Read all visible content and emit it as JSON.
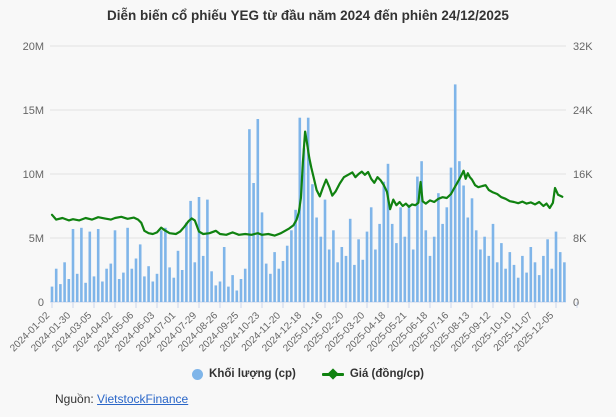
{
  "chart_data": {
    "type": "combo-bar-line",
    "title": "Diễn biến cổ phiếu YEG từ đầu năm 2024 đến phiên 24/12/2025",
    "x_tick_labels": [
      "2024-01-02",
      "2024-01-30",
      "2024-03-05",
      "2024-04-02",
      "2024-05-06",
      "2024-06-03",
      "2024-07-01",
      "2024-07-29",
      "2024-08-26",
      "2024-09-25",
      "2024-10-23",
      "2024-11-20",
      "2024-12-18",
      "2025-01-16",
      "2025-02-20",
      "2025-03-20",
      "2025-04-18",
      "2025-05-21",
      "2025-06-18",
      "2025-07-16",
      "2025-08-13",
      "2025-09-12",
      "2025-10-10",
      "2025-11-07",
      "2025-12-05"
    ],
    "y_left_axis": {
      "ticks": [
        "0",
        "5M",
        "10M",
        "15M",
        "20M"
      ],
      "min": 0,
      "max_millions": 20,
      "applies_to": "Khối lượng (cp)"
    },
    "y_right_axis": {
      "ticks": [
        "0",
        "8K",
        "16K",
        "24K",
        "32K"
      ],
      "min": 0,
      "max_thousands": 32,
      "applies_to": "Giá (đồng/cp)"
    },
    "grid": "horizontal-only",
    "legend_position": "bottom-center",
    "series": [
      {
        "name": "Khối lượng (cp)",
        "type": "bar",
        "color": "#7fb5e9",
        "unit": "cổ phiếu, triệu (M)",
        "t_step": 0.2,
        "values_millions": [
          1.2,
          2.6,
          1.4,
          3.1,
          1.8,
          5.7,
          2.2,
          5.8,
          1.5,
          5.5,
          2.0,
          5.7,
          1.6,
          2.6,
          3.0,
          5.6,
          1.8,
          2.3,
          5.8,
          2.6,
          3.4,
          4.5,
          2.0,
          2.8,
          1.6,
          2.2,
          5.6,
          5.8,
          2.7,
          1.9,
          4.0,
          2.5,
          6.2,
          7.9,
          3.1,
          8.2,
          3.6,
          8.0,
          2.4,
          1.3,
          1.6,
          4.3,
          1.2,
          2.1,
          0.9,
          1.8,
          2.6,
          13.5,
          9.3,
          14.3,
          7.0,
          3.0,
          2.2,
          3.9,
          2.6,
          3.2,
          4.4,
          5.6,
          7.2,
          14.4,
          12.0,
          14.4,
          9.2,
          6.6,
          5.1,
          8.0,
          4.1,
          5.6,
          3.1,
          4.3,
          3.6,
          6.5,
          2.9,
          4.9,
          3.3,
          5.5,
          7.4,
          4.1,
          6.1,
          9.4,
          10.8,
          6.1,
          4.6,
          7.4,
          5.1,
          7.6,
          4.1,
          9.8,
          11.0,
          5.6,
          3.6,
          5.1,
          8.5,
          6.1,
          7.4,
          10.5,
          17.0,
          11.0,
          9.1,
          6.6,
          8.1,
          5.6,
          4.1,
          5.1,
          3.6,
          6.1,
          3.1,
          4.6,
          2.6,
          3.9,
          2.9,
          1.9,
          3.6,
          2.3,
          4.3,
          3.1,
          2.1,
          3.6,
          4.9,
          2.6,
          5.5,
          3.9,
          3.1
        ]
      },
      {
        "name": "Giá (đồng/cp)",
        "type": "line",
        "color": "#108210",
        "unit": "đồng/cổ phiếu, nghìn (K)",
        "points_t_priceK": [
          [
            0,
            10.9
          ],
          [
            0.2,
            10.3
          ],
          [
            0.5,
            10.5
          ],
          [
            0.8,
            10.2
          ],
          [
            1,
            10.35
          ],
          [
            1.3,
            10.2
          ],
          [
            1.6,
            10.5
          ],
          [
            1.9,
            10.3
          ],
          [
            2.2,
            10.6
          ],
          [
            2.5,
            10.45
          ],
          [
            2.8,
            10.3
          ],
          [
            3,
            10.5
          ],
          [
            3.3,
            10.65
          ],
          [
            3.6,
            10.4
          ],
          [
            3.9,
            10.55
          ],
          [
            4.1,
            10.3
          ],
          [
            4.25,
            9.9
          ],
          [
            4.4,
            8.9
          ],
          [
            4.6,
            8.6
          ],
          [
            4.8,
            8.5
          ],
          [
            5,
            8.7
          ],
          [
            5.2,
            9.3
          ],
          [
            5.35,
            9.0
          ],
          [
            5.6,
            8.6
          ],
          [
            5.9,
            8.5
          ],
          [
            6.1,
            8.8
          ],
          [
            6.3,
            9.4
          ],
          [
            6.5,
            10.1
          ],
          [
            6.65,
            10.45
          ],
          [
            6.8,
            10.2
          ],
          [
            7,
            8.8
          ],
          [
            7.2,
            8.5
          ],
          [
            7.5,
            8.6
          ],
          [
            7.8,
            8.9
          ],
          [
            8,
            8.5
          ],
          [
            8.3,
            8.4
          ],
          [
            8.6,
            8.7
          ],
          [
            8.9,
            8.4
          ],
          [
            9.2,
            8.5
          ],
          [
            9.5,
            8.4
          ],
          [
            9.8,
            8.6
          ],
          [
            10,
            8.4
          ],
          [
            10.3,
            8.5
          ],
          [
            10.6,
            8.3
          ],
          [
            10.9,
            8.6
          ],
          [
            11.1,
            8.9
          ],
          [
            11.3,
            9.2
          ],
          [
            11.5,
            9.6
          ],
          [
            11.65,
            10.3
          ],
          [
            11.75,
            11.2
          ],
          [
            11.85,
            13.0
          ],
          [
            11.95,
            17.5
          ],
          [
            12.05,
            21.3
          ],
          [
            12.15,
            19.8
          ],
          [
            12.25,
            18.0
          ],
          [
            12.35,
            16.8
          ],
          [
            12.45,
            15.7
          ],
          [
            12.6,
            14.0
          ],
          [
            12.75,
            13.2
          ],
          [
            12.9,
            14.3
          ],
          [
            13.05,
            15.3
          ],
          [
            13.2,
            14.4
          ],
          [
            13.35,
            13.3
          ],
          [
            13.5,
            13.8
          ],
          [
            13.7,
            14.8
          ],
          [
            13.9,
            15.6
          ],
          [
            14.1,
            15.9
          ],
          [
            14.3,
            16.2
          ],
          [
            14.45,
            15.6
          ],
          [
            14.6,
            16.0
          ],
          [
            14.75,
            16.3
          ],
          [
            14.9,
            15.9
          ],
          [
            15.05,
            16.25
          ],
          [
            15.2,
            15.4
          ],
          [
            15.35,
            14.9
          ],
          [
            15.5,
            15.6
          ],
          [
            15.65,
            15.2
          ],
          [
            15.8,
            14.6
          ],
          [
            15.95,
            13.8
          ],
          [
            16.1,
            11.6
          ],
          [
            16.25,
            12.8
          ],
          [
            16.4,
            12.1
          ],
          [
            16.55,
            12.5
          ],
          [
            16.7,
            12.0
          ],
          [
            16.85,
            12.3
          ],
          [
            17,
            11.9
          ],
          [
            17.15,
            12.2
          ],
          [
            17.3,
            12.1
          ],
          [
            17.45,
            12.4
          ],
          [
            17.55,
            15.0
          ],
          [
            17.65,
            12.6
          ],
          [
            17.8,
            12.3
          ],
          [
            18,
            12.7
          ],
          [
            18.2,
            12.5
          ],
          [
            18.4,
            12.9
          ],
          [
            18.6,
            13.1
          ],
          [
            18.8,
            13.0
          ],
          [
            19,
            13.5
          ],
          [
            19.15,
            14.2
          ],
          [
            19.3,
            14.9
          ],
          [
            19.45,
            15.6
          ],
          [
            19.6,
            16.4
          ],
          [
            19.7,
            15.4
          ],
          [
            19.8,
            16.1
          ],
          [
            19.9,
            15.6
          ],
          [
            20,
            15.3
          ],
          [
            20.15,
            14.6
          ],
          [
            20.3,
            14.35
          ],
          [
            20.5,
            14.5
          ],
          [
            20.65,
            14.6
          ],
          [
            20.8,
            14.0
          ],
          [
            21,
            13.7
          ],
          [
            21.2,
            13.5
          ],
          [
            21.4,
            13.1
          ],
          [
            21.6,
            12.9
          ],
          [
            21.8,
            12.6
          ],
          [
            22,
            12.5
          ],
          [
            22.2,
            12.35
          ],
          [
            22.4,
            12.55
          ],
          [
            22.6,
            12.3
          ],
          [
            22.8,
            12.45
          ],
          [
            23,
            12.2
          ],
          [
            23.2,
            12.5
          ],
          [
            23.4,
            12.0
          ],
          [
            23.55,
            12.3
          ],
          [
            23.7,
            11.75
          ],
          [
            23.85,
            12.4
          ],
          [
            23.95,
            14.25
          ],
          [
            24.1,
            13.4
          ],
          [
            24.3,
            13.15
          ]
        ]
      }
    ],
    "annotations": {
      "peak_price_thousands": 21.3,
      "peak_price_near_tick": "2024-12-18",
      "max_volume_millions": 17.0,
      "max_volume_between_ticks": "2025-07-16 and 2025-08-13"
    }
  },
  "legend": {
    "items": [
      {
        "label": "Khối lượng (cp)",
        "marker": "circle",
        "color": "#7fb5e9"
      },
      {
        "label": "Giá (đồng/cp)",
        "marker": "line-diamond",
        "color": "#108210"
      }
    ]
  },
  "source": {
    "label": "Nguồn:",
    "link_text": "VietstockFinance"
  },
  "colors": {
    "background": "#f8f8f8",
    "grid": "#e2e2e2",
    "axis_label": "#666666",
    "title": "#333333",
    "tick_mark": "#ccd6eb",
    "link": "#2a66c8",
    "volume_bar": "#7fb5e9",
    "price_line": "#108210"
  }
}
